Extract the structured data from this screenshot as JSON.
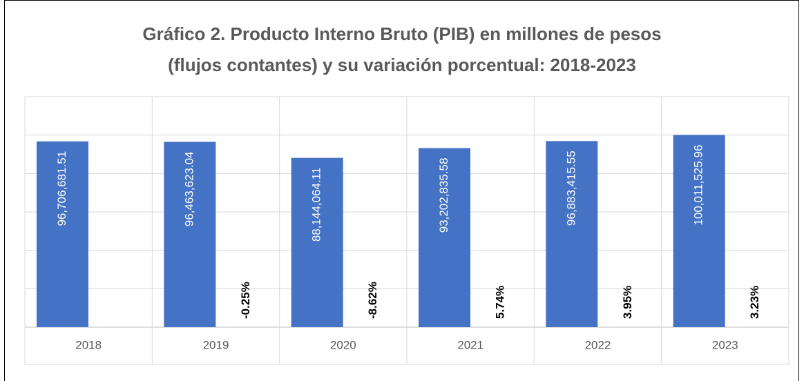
{
  "chart_data": {
    "type": "bar",
    "title": [
      "Gráfico 2. Producto Interno Bruto (PIB) en millones de pesos",
      "(flujos contantes) y su variación porcentual: 2018-2023"
    ],
    "categories": [
      "2018",
      "2019",
      "2020",
      "2021",
      "2022",
      "2023"
    ],
    "values": [
      96706681.51,
      96463623.04,
      88144064.11,
      93202835.58,
      96883415.55,
      100011525.96
    ],
    "value_labels": [
      "96,706,681.51",
      "96,463,623.04",
      "88,144,064.11",
      "93,202,835.58",
      "96,883,415.55",
      "100,011,525.96"
    ],
    "color": "#4472c4",
    "variation": {
      "values": [
        null,
        -0.25,
        -8.62,
        5.74,
        3.95,
        3.23
      ],
      "value_labels": [
        null,
        "-0.25%",
        "-8.62%",
        "5.74%",
        "3.95%",
        "3.23%"
      ]
    },
    "ylim": [
      0,
      120000000
    ],
    "yticks": [
      0,
      20000000,
      40000000,
      60000000,
      80000000,
      100000000,
      120000000
    ],
    "grid": true
  }
}
